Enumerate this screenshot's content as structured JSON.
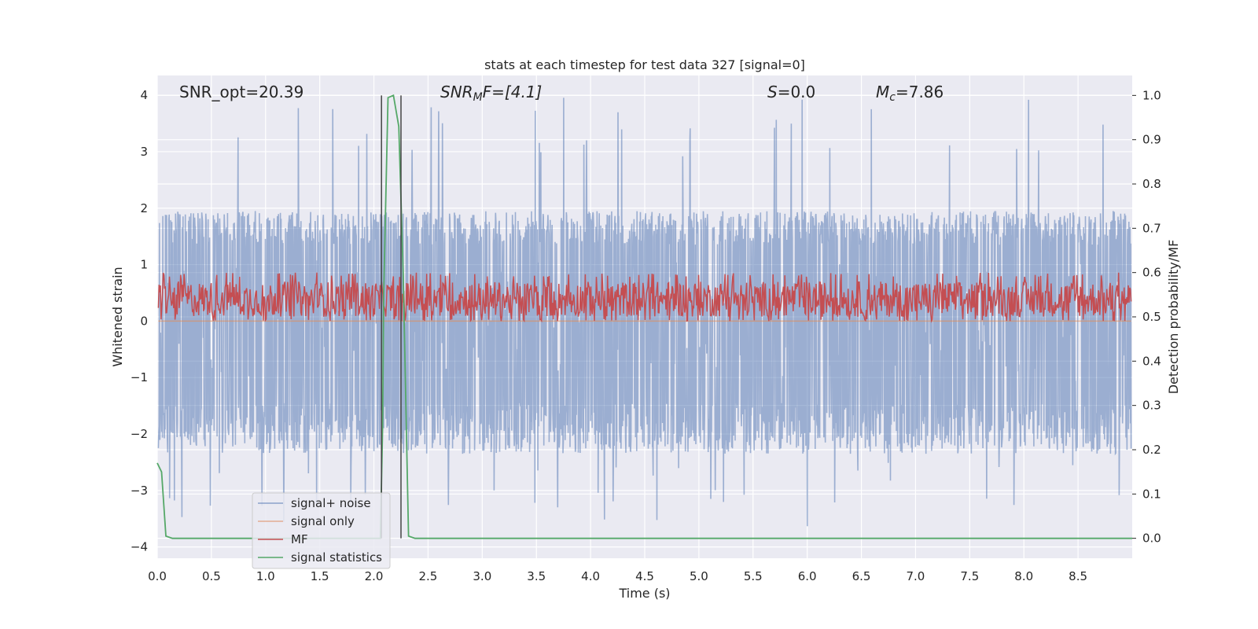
{
  "chart_data": {
    "type": "line",
    "title": "stats at each timestep for test data 327 [signal=0]",
    "xlabel": "Time (s)",
    "ylabel": "Whitened strain",
    "ylabel_right": "Detection probability/MF",
    "xlim": [
      0.0,
      9.0
    ],
    "ylim": [
      -4.2,
      4.35
    ],
    "ylim_right": [
      -0.045,
      1.045
    ],
    "xticks": [
      0.0,
      0.5,
      1.0,
      1.5,
      2.0,
      2.5,
      3.0,
      3.5,
      4.0,
      4.5,
      5.0,
      5.5,
      6.0,
      6.5,
      7.0,
      7.5,
      8.0,
      8.5
    ],
    "xtick_labels": [
      "0.0",
      "0.5",
      "1.0",
      "1.5",
      "2.0",
      "2.5",
      "3.0",
      "3.5",
      "4.0",
      "4.5",
      "5.0",
      "5.5",
      "6.0",
      "6.5",
      "7.0",
      "7.5",
      "8.0",
      "8.5"
    ],
    "yticks": [
      -4,
      -3,
      -2,
      -1,
      0,
      1,
      2,
      3,
      4
    ],
    "ytick_labels": [
      "−4",
      "−3",
      "−2",
      "−1",
      "0",
      "1",
      "2",
      "3",
      "4"
    ],
    "yticks_right": [
      0.0,
      0.1,
      0.2,
      0.3,
      0.4,
      0.5,
      0.6,
      0.7,
      0.8,
      0.9,
      1.0
    ],
    "ytick_labels_right": [
      "0.0",
      "0.1",
      "0.2",
      "0.3",
      "0.4",
      "0.5",
      "0.6",
      "0.7",
      "0.8",
      "0.9",
      "1.0"
    ],
    "grid": true,
    "legend_position": "lower-left",
    "annotations": {
      "snr_opt": "SNR_opt=20.39",
      "snr_mf_main": "SNR",
      "snr_mf_sub": "M",
      "snr_mf_rest": "F=[4.1]",
      "s_var": "S",
      "s_rest": "=0.0",
      "mc_var": "M",
      "mc_sub": "c",
      "mc_rest": "=7.86"
    },
    "vlines": [
      2.07,
      2.25
    ],
    "series": [
      {
        "name": "signal+ noise",
        "color": "#4c72b0",
        "axis": "left",
        "kind": "noise",
        "band": [
          -1.45,
          1.65
        ],
        "peak_max": 3.98,
        "peak_min": -3.7
      },
      {
        "name": "signal only",
        "color": "#dd8452",
        "axis": "left",
        "kind": "flat",
        "value": 0.0
      },
      {
        "name": "MF",
        "color": "#c44e52",
        "axis": "right",
        "kind": "noise",
        "band": [
          0.5,
          0.58
        ],
        "peak_max": 0.6,
        "peak_min": 0.49
      },
      {
        "name": "signal statistics",
        "color": "#55a868",
        "axis": "right",
        "kind": "line",
        "x": [
          0.0,
          0.04,
          0.08,
          0.14,
          2.06,
          2.08,
          2.09,
          2.13,
          2.18,
          2.23,
          2.27,
          2.32,
          2.38,
          9.0
        ],
        "y": [
          0.17,
          0.15,
          0.005,
          0.0,
          0.0,
          0.25,
          0.55,
          0.995,
          1.0,
          0.93,
          0.6,
          0.005,
          0.0,
          0.0
        ]
      }
    ]
  }
}
